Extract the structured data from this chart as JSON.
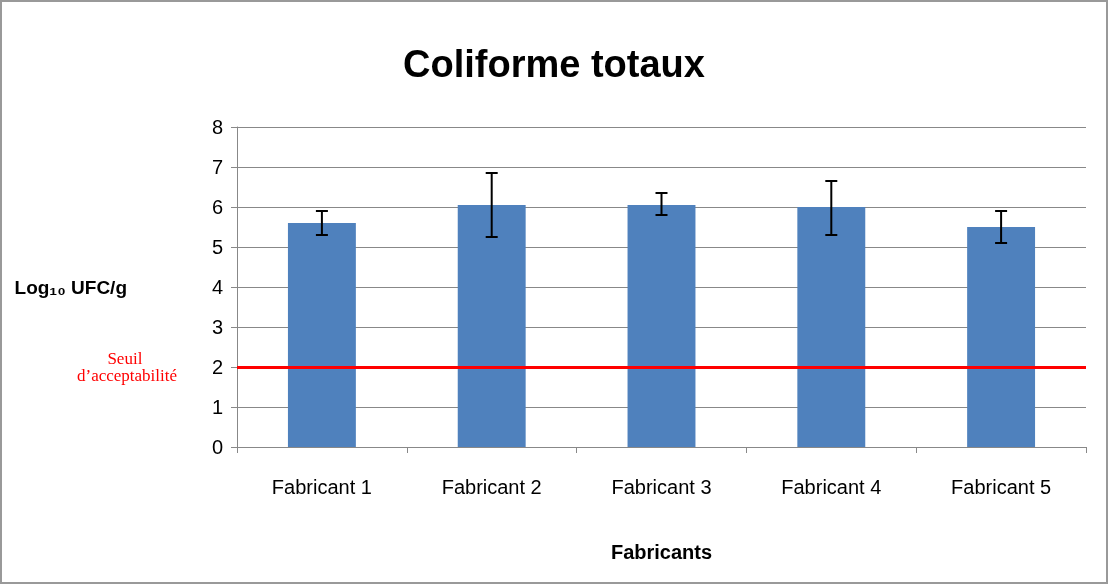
{
  "chart_data": {
    "type": "bar",
    "title": "Coliforme totaux",
    "xlabel": "Fabricants",
    "ylabel": "Log₁₀ UFC/g",
    "categories": [
      "Fabricant 1",
      "Fabricant 2",
      "Fabricant 3",
      "Fabricant 4",
      "Fabricant 5"
    ],
    "values": [
      5.6,
      6.05,
      6.05,
      6,
      5.5
    ],
    "errors": [
      [
        5.3,
        5.9
      ],
      [
        5.25,
        6.85
      ],
      [
        5.8,
        6.35
      ],
      [
        5.3,
        6.65
      ],
      [
        5.1,
        5.9
      ]
    ],
    "color": "#4f81bd",
    "ylim": [
      0,
      8
    ],
    "yticks": [
      0,
      1,
      2,
      3,
      4,
      5,
      6,
      7,
      8
    ],
    "grid": "y",
    "ref_lines": [
      {
        "axis": "y",
        "value": 2,
        "label": "Seuil d’acceptabilité",
        "color": "#ff0000"
      }
    ]
  }
}
